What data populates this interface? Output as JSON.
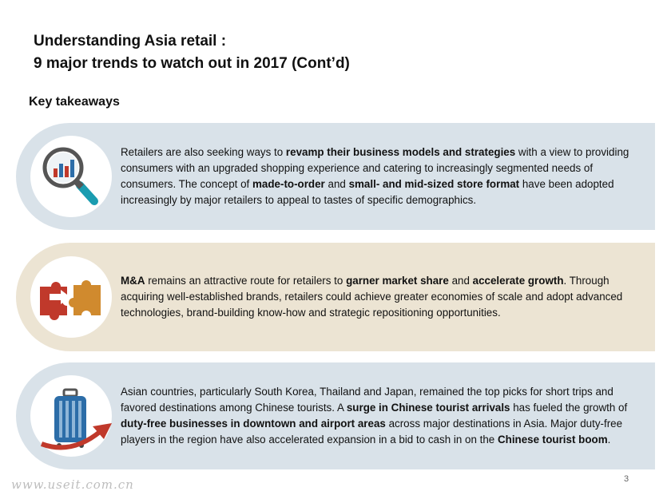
{
  "header": {
    "title_line1": "Understanding Asia retail :",
    "title_line2": "9 major trends to watch out in 2017 (Cont’d)"
  },
  "section": {
    "heading": "Key takeaways"
  },
  "cards": [
    {
      "icon": "magnifier-chart-icon",
      "background": "#d9e2e9",
      "segments": [
        {
          "text": "Retailers are also seeking ways to ",
          "bold": false
        },
        {
          "text": "revamp their business models and strategies",
          "bold": true
        },
        {
          "text": " with a view to providing consumers with an upgraded shopping experience and catering to increasingly segmented needs of consumers. The concept of ",
          "bold": false
        },
        {
          "text": "made-to-order",
          "bold": true
        },
        {
          "text": " and ",
          "bold": false
        },
        {
          "text": "small- and mid-sized store format",
          "bold": true
        },
        {
          "text": " have been adopted increasingly by major retailers to appeal to tastes of specific demographics.",
          "bold": false
        }
      ]
    },
    {
      "icon": "puzzle-pieces-icon",
      "background": "#ece4d3",
      "segments": [
        {
          "text": "M&A",
          "bold": true
        },
        {
          "text": " remains an attractive route for retailers to ",
          "bold": false
        },
        {
          "text": "garner market share",
          "bold": true
        },
        {
          "text": " and ",
          "bold": false
        },
        {
          "text": "accelerate growth",
          "bold": true
        },
        {
          "text": ". Through acquiring well-established brands, retailers could achieve greater economies of scale and adopt advanced technologies, brand-building know-how and strategic repositioning opportunities.",
          "bold": false
        }
      ]
    },
    {
      "icon": "luggage-arrow-icon",
      "background": "#d9e2e9",
      "segments": [
        {
          "text": "Asian countries, particularly South Korea, Thailand and Japan, remained the top picks for short trips and favored destinations among Chinese tourists.  A ",
          "bold": false
        },
        {
          "text": "surge in Chinese tourist arrivals",
          "bold": true
        },
        {
          "text": " has fueled the growth of ",
          "bold": false
        },
        {
          "text": "duty-free businesses in downtown and airport areas",
          "bold": true
        },
        {
          "text": " across major destinations in Asia. Major duty-free players in the region have also accelerated expansion in a bid to cash in on the ",
          "bold": false
        },
        {
          "text": "Chinese tourist boom",
          "bold": true
        },
        {
          "text": ".",
          "bold": false
        }
      ]
    }
  ],
  "footer": {
    "page_number": "3",
    "watermark": "www.useit.com.cn"
  }
}
